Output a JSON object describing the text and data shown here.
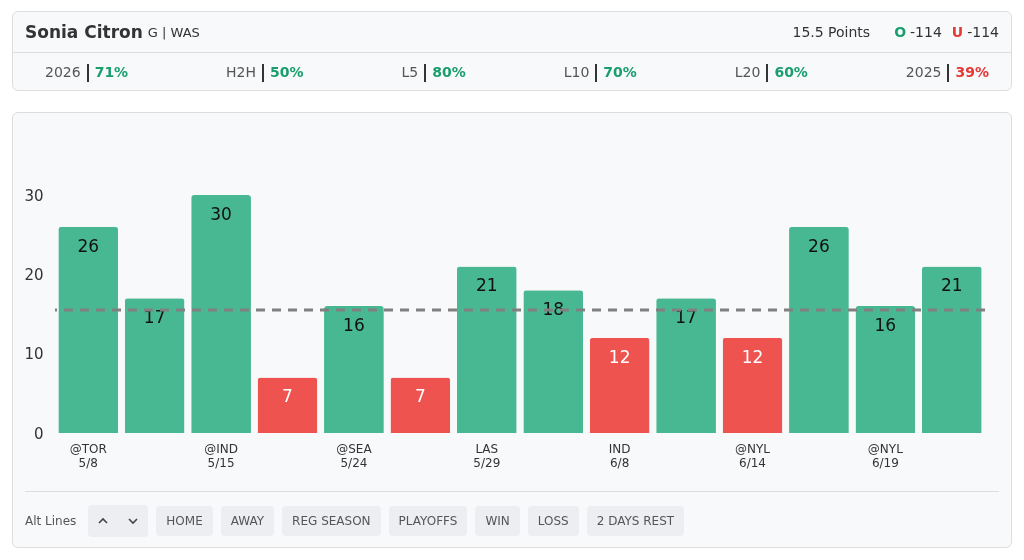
{
  "chart_data": {
    "type": "bar",
    "title": "Sonia Citron",
    "subtitle": "G | WAS",
    "categories": [
      "@TOR 5/8",
      null,
      "@IND 5/15",
      null,
      "@SEA 5/24",
      null,
      "LAS 5/29",
      null,
      "IND 6/8",
      null,
      "@NYL 6/14",
      null,
      "@NYL 6/19",
      null
    ],
    "values": [
      26,
      17,
      30,
      7,
      16,
      7,
      21,
      18,
      12,
      17,
      12,
      26,
      16,
      21
    ],
    "colors": [
      "#47b891",
      "#47b891",
      "#47b891",
      "#ef5350",
      "#47b891",
      "#ef5350",
      "#47b891",
      "#47b891",
      "#ef5350",
      "#47b891",
      "#ef5350",
      "#47b891",
      "#47b891",
      "#47b891"
    ],
    "ylim": [
      0,
      30
    ],
    "yticks": [
      0,
      10,
      20,
      30
    ],
    "grid": false,
    "data_labels": true,
    "ref_lines": [
      {
        "axis": "y",
        "value": 15.5,
        "color": "#808080",
        "line_style": "dashed"
      }
    ],
    "annotations": [
      "15.5 Points",
      "O -114",
      "U -114",
      "2026",
      "71%",
      "H2H",
      "50%",
      "L5",
      "80%",
      "L10",
      "70%",
      "L20",
      "60%",
      "2025",
      "39%",
      "Alt Lines",
      "HOME",
      "AWAY",
      "REG SEASON",
      "PLAYOFFS",
      "WIN",
      "LOSS",
      "2 DAYS REST"
    ]
  }
}
